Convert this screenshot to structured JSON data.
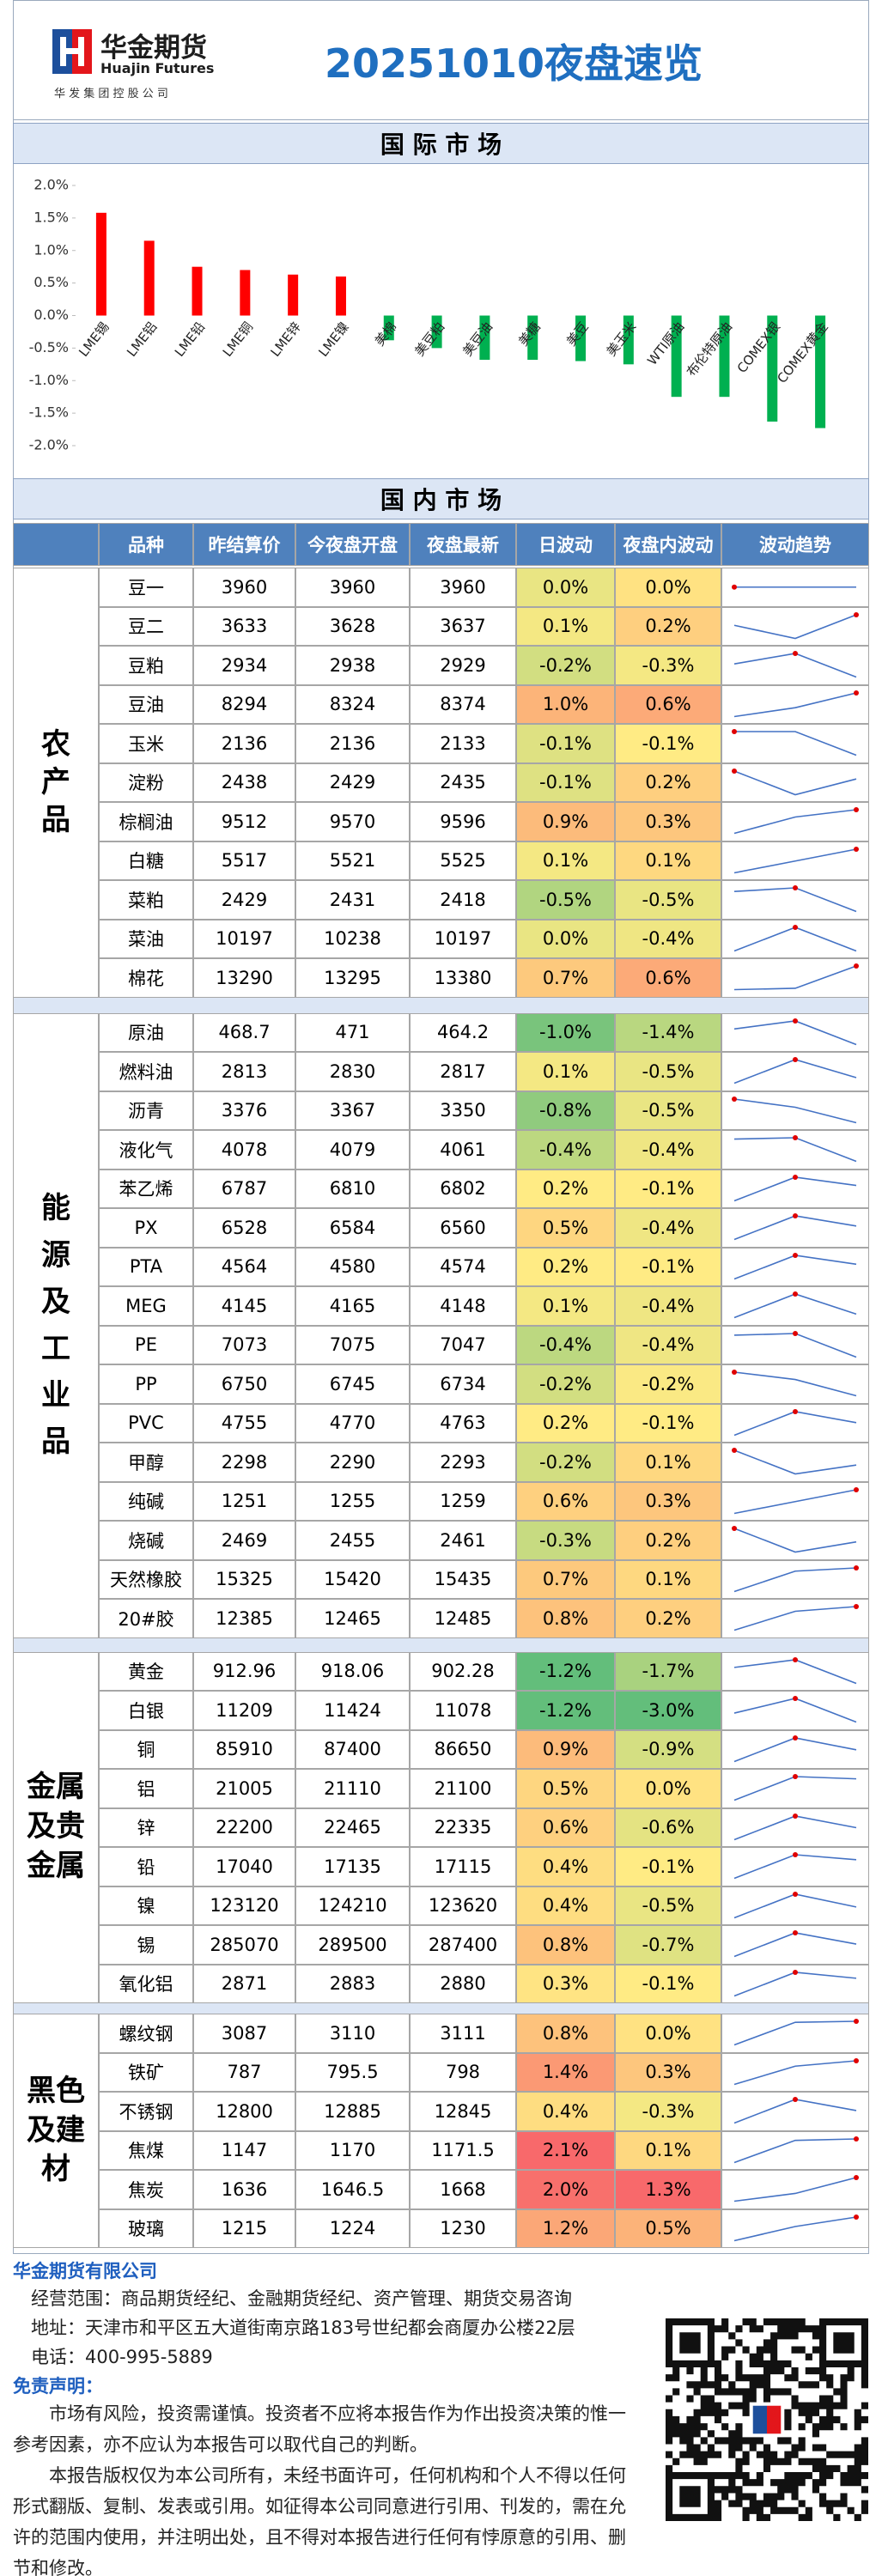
{
  "header": {
    "logo_name": "华金期货",
    "logo_en": "Huajin Futures",
    "logo_sub": "华 发 集 团 控 股 公 司",
    "title": "20251010夜盘速览"
  },
  "chart_data": {
    "type": "bar",
    "title": "国 际 市 场",
    "categories": [
      "LME锡",
      "LME铝",
      "LME铅",
      "LME铜",
      "LME锌",
      "LME镍",
      "美棉",
      "美豆粕",
      "美豆油",
      "美糖",
      "美豆",
      "美玉米",
      "WTI原油",
      "布伦特原油",
      "COMEX银",
      "COMEX黄金"
    ],
    "values": [
      1.58,
      1.15,
      0.75,
      0.7,
      0.63,
      0.6,
      -0.38,
      -0.5,
      -0.68,
      -0.68,
      -0.7,
      -0.75,
      -1.25,
      -1.25,
      -1.63,
      -1.73
    ],
    "positive_color": "#ff0000",
    "negative_color": "#00b050",
    "ylim": [
      -2.0,
      2.0
    ],
    "yticks": [
      {
        "value": 2.0,
        "label": "2.0%"
      },
      {
        "value": 1.5,
        "label": "1.5%"
      },
      {
        "value": 1.0,
        "label": "1.0%"
      },
      {
        "value": 0.5,
        "label": "0.5%"
      },
      {
        "value": 0.0,
        "label": "0.0%"
      },
      {
        "value": -0.5,
        "label": "-0.5%"
      },
      {
        "value": -1.0,
        "label": "-1.0%"
      },
      {
        "value": -1.5,
        "label": "-1.5%"
      },
      {
        "value": -2.0,
        "label": "-2.0%"
      }
    ],
    "grid": false
  },
  "domestic": {
    "title": "国 内 市 场",
    "columns": [
      "品种",
      "昨结算价",
      "今夜盘开盘",
      "夜盘最新",
      "日波动",
      "夜盘内波动",
      "波动趋势"
    ],
    "groups": [
      {
        "name": "农产品",
        "rows": [
          [
            "豆一",
            3960,
            3960,
            3960,
            "0.0%",
            "0.0%"
          ],
          [
            "豆二",
            3633,
            3628,
            3637,
            "0.1%",
            "0.2%"
          ],
          [
            "豆粕",
            2934,
            2938,
            2929,
            "-0.2%",
            "-0.3%"
          ],
          [
            "豆油",
            8294,
            8324,
            8374,
            "1.0%",
            "0.6%"
          ],
          [
            "玉米",
            2136,
            2136,
            2133,
            "-0.1%",
            "-0.1%"
          ],
          [
            "淀粉",
            2438,
            2429,
            2435,
            "-0.1%",
            "0.2%"
          ],
          [
            "棕榈油",
            9512,
            9570,
            9596,
            "0.9%",
            "0.3%"
          ],
          [
            "白糖",
            5517,
            5521,
            5525,
            "0.1%",
            "0.1%"
          ],
          [
            "菜粕",
            2429,
            2431,
            2418,
            "-0.5%",
            "-0.5%"
          ],
          [
            "菜油",
            10197,
            10238,
            10197,
            "0.0%",
            "-0.4%"
          ],
          [
            "棉花",
            13290,
            13295,
            13380,
            "0.7%",
            "0.6%"
          ]
        ]
      },
      {
        "name": "能源及工业品",
        "rows": [
          [
            "原油",
            468.7,
            471,
            464.2,
            "-1.0%",
            "-1.4%"
          ],
          [
            "燃料油",
            2813,
            2830,
            2817,
            "0.1%",
            "-0.5%"
          ],
          [
            "沥青",
            3376,
            3367,
            3350,
            "-0.8%",
            "-0.5%"
          ],
          [
            "液化气",
            4078,
            4079,
            4061,
            "-0.4%",
            "-0.4%"
          ],
          [
            "苯乙烯",
            6787,
            6810,
            6802,
            "0.2%",
            "-0.1%"
          ],
          [
            "PX",
            6528,
            6584,
            6560,
            "0.5%",
            "-0.4%"
          ],
          [
            "PTA",
            4564,
            4580,
            4574,
            "0.2%",
            "-0.1%"
          ],
          [
            "MEG",
            4145,
            4165,
            4148,
            "0.1%",
            "-0.4%"
          ],
          [
            "PE",
            7073,
            7075,
            7047,
            "-0.4%",
            "-0.4%"
          ],
          [
            "PP",
            6750,
            6745,
            6734,
            "-0.2%",
            "-0.2%"
          ],
          [
            "PVC",
            4755,
            4770,
            4763,
            "0.2%",
            "-0.1%"
          ],
          [
            "甲醇",
            2298,
            2290,
            2293,
            "-0.2%",
            "0.1%"
          ],
          [
            "纯碱",
            1251,
            1255,
            1259,
            "0.6%",
            "0.3%"
          ],
          [
            "烧碱",
            2469,
            2455,
            2461,
            "-0.3%",
            "0.2%"
          ],
          [
            "天然橡胶",
            15325,
            15420,
            15435,
            "0.7%",
            "0.1%"
          ],
          [
            "20#胶",
            12385,
            12465,
            12485,
            "0.8%",
            "0.2%"
          ]
        ]
      },
      {
        "name": "金属及贵金属",
        "rows": [
          [
            "黄金",
            912.96,
            918.06,
            902.28,
            "-1.2%",
            "-1.7%"
          ],
          [
            "白银",
            11209,
            11424,
            11078,
            "-1.2%",
            "-3.0%"
          ],
          [
            "铜",
            85910,
            87400,
            86650,
            "0.9%",
            "-0.9%"
          ],
          [
            "铝",
            21005,
            21110,
            21100,
            "0.5%",
            "0.0%"
          ],
          [
            "锌",
            22200,
            22465,
            22335,
            "0.6%",
            "-0.6%"
          ],
          [
            "铅",
            17040,
            17135,
            17115,
            "0.4%",
            "-0.1%"
          ],
          [
            "镍",
            123120,
            124210,
            123620,
            "0.4%",
            "-0.5%"
          ],
          [
            "锡",
            285070,
            289500,
            287400,
            "0.8%",
            "-0.7%"
          ],
          [
            "氧化铝",
            2871,
            2883,
            2880,
            "0.3%",
            "-0.1%"
          ]
        ]
      },
      {
        "name": "黑色及建材",
        "rows": [
          [
            "螺纹钢",
            3087,
            3110,
            3111,
            "0.8%",
            "0.0%"
          ],
          [
            "铁矿",
            787,
            795.5,
            798,
            "1.4%",
            "0.3%"
          ],
          [
            "不锈钢",
            12800,
            12885,
            12845,
            "0.4%",
            "-0.3%"
          ],
          [
            "焦煤",
            1147,
            1170,
            1171.5,
            "2.1%",
            "0.1%"
          ],
          [
            "焦炭",
            1636,
            1646.5,
            1668,
            "2.0%",
            "1.3%"
          ],
          [
            "玻璃",
            1215,
            1224,
            1230,
            "1.2%",
            "0.5%"
          ]
        ]
      }
    ]
  },
  "footer": {
    "company": "华金期货有限公司",
    "lines": [
      "经营范围：商品期货经纪、金融期货经纪、资产管理、期货交易咨询",
      "地址：天津市和平区五大道街南京路183号世纪都会商厦办公楼22层",
      "电话：400-995-5889"
    ],
    "disclaimer_title": "免责声明：",
    "disclaimer": [
      "市场有风险，投资需谨慎。投资者不应将本报告作为作出投资决策的惟一参考因素，亦不应认为本报告可以取代自己的判断。",
      "本报告版权仅为本公司所有，未经书面许可，任何机构和个人不得以任何形式翻版、复制、发表或引用。如征得本公司同意进行引用、刊发的，需在允许的范围内使用，并注明出处，且不得对本报告进行任何有悖原意的引用、删节和修改。"
    ]
  }
}
